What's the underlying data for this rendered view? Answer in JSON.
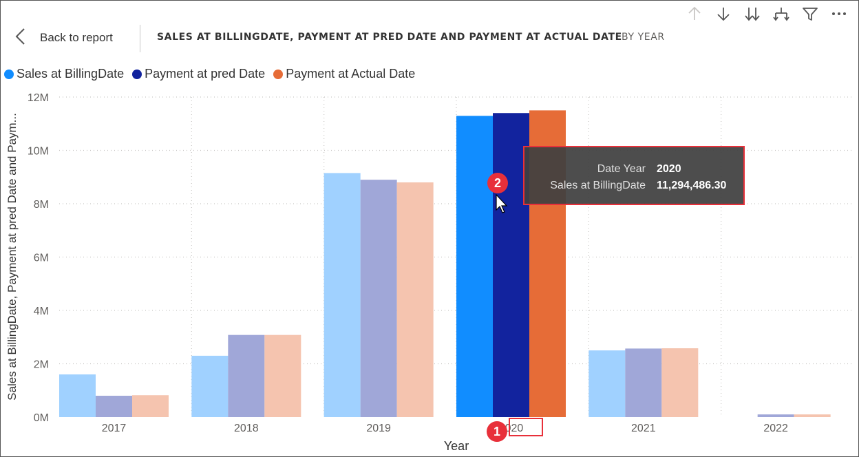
{
  "header": {
    "back_label": "Back to report",
    "title": "SALES AT BILLINGDATE, PAYMENT AT PRED DATE AND PAYMENT AT ACTUAL DATE",
    "subtitle": "BY YEAR"
  },
  "toolbar": {
    "icons": [
      "arrow-up-icon",
      "arrow-down-icon",
      "double-arrow-down-icon",
      "expand-hierarchy-icon",
      "filter-icon",
      "more-options-icon"
    ]
  },
  "tooltip": {
    "rows": [
      {
        "key": "Date Year",
        "value": "2020"
      },
      {
        "key": "Sales at BillingDate",
        "value": "11,294,486.30"
      }
    ]
  },
  "markers": {
    "m1": "1",
    "m2": "2"
  },
  "chart_data": {
    "type": "bar",
    "xlabel": "Year",
    "ylabel": "Sales at BillingDate, Payment at pred Date and Paym...",
    "categories": [
      "2017",
      "2018",
      "2019",
      "2020",
      "2021",
      "2022"
    ],
    "ylim": [
      0,
      12000000
    ],
    "yticks": [
      0,
      2000000,
      4000000,
      6000000,
      8000000,
      10000000,
      12000000
    ],
    "ytick_labels": [
      "0M",
      "2M",
      "4M",
      "6M",
      "8M",
      "10M",
      "12M"
    ],
    "grid": true,
    "legend_position": "top-left",
    "highlighted_category": "2020",
    "series": [
      {
        "name": "Sales at BillingDate",
        "color": "#118dff",
        "faded_color": "#a0d1ff",
        "values": [
          1600000,
          2300000,
          9150000,
          11294486.3,
          2500000,
          0
        ]
      },
      {
        "name": "Payment at pred Date",
        "color": "#12239e",
        "faded_color": "#a0a7d8",
        "values": [
          800000,
          3080000,
          8900000,
          11400000,
          2570000,
          100000
        ]
      },
      {
        "name": "Payment at Actual Date",
        "color": "#e66c37",
        "faded_color": "#f5c4af",
        "values": [
          820000,
          3080000,
          8800000,
          11500000,
          2580000,
          100000
        ]
      }
    ]
  }
}
